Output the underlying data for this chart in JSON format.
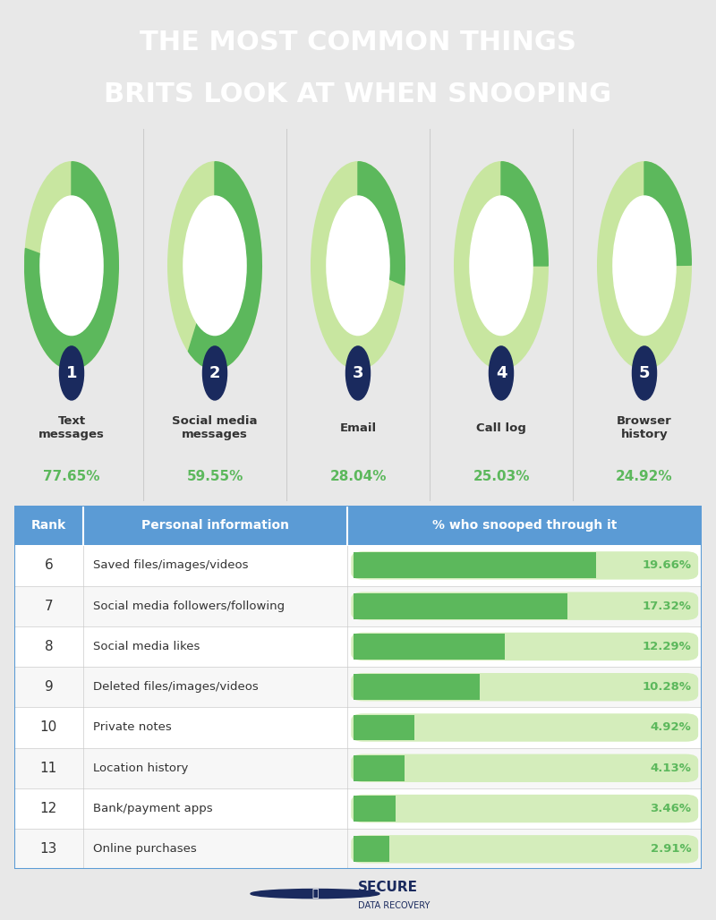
{
  "title_line1": "THE MOST COMMON THINGS",
  "title_line2": "BRITS LOOK AT WHEN SNOOPING",
  "title_bg": "#1a2a5e",
  "title_color": "#ffffff",
  "donut_green": "#5cb85c",
  "donut_light_green": "#c8e6a0",
  "donut_items": [
    {
      "rank": 1,
      "label": "Text\nmessages",
      "pct": 77.65,
      "pct_str": "77.65%"
    },
    {
      "rank": 2,
      "label": "Social media\nmessages",
      "pct": 59.55,
      "pct_str": "59.55%"
    },
    {
      "rank": 3,
      "label": "Email",
      "pct": 28.04,
      "pct_str": "28.04%"
    },
    {
      "rank": 4,
      "label": "Call log",
      "pct": 25.03,
      "pct_str": "25.03%"
    },
    {
      "rank": 5,
      "label": "Browser\nhistory",
      "pct": 24.92,
      "pct_str": "24.92%"
    }
  ],
  "table_header_bg": "#5b9bd5",
  "table_header_text": "#ffffff",
  "table_items": [
    {
      "rank": 6,
      "label": "Saved files/images/videos",
      "pct": 19.66,
      "pct_str": "19.66%"
    },
    {
      "rank": 7,
      "label": "Social media followers/following",
      "pct": 17.32,
      "pct_str": "17.32%"
    },
    {
      "rank": 8,
      "label": "Social media likes",
      "pct": 12.29,
      "pct_str": "12.29%"
    },
    {
      "rank": 9,
      "label": "Deleted files/images/videos",
      "pct": 10.28,
      "pct_str": "10.28%"
    },
    {
      "rank": 10,
      "label": "Private notes",
      "pct": 4.92,
      "pct_str": "4.92%"
    },
    {
      "rank": 11,
      "label": "Location history",
      "pct": 4.13,
      "pct_str": "4.13%"
    },
    {
      "rank": 12,
      "label": "Bank/payment apps",
      "pct": 3.46,
      "pct_str": "3.46%"
    },
    {
      "rank": 13,
      "label": "Online purchases",
      "pct": 2.91,
      "pct_str": "2.91%"
    }
  ],
  "bar_green": "#5cb85c",
  "bar_light_green": "#d4edbb",
  "pct_text_color": "#5cb85c",
  "rank_circle_color": "#1a2a5e",
  "rank_text_color": "#ffffff",
  "label_text_color": "#333333",
  "footer_bg": "#e8e8e8",
  "separator_blue": "#2e5fa3",
  "max_bar_pct": 20.0
}
